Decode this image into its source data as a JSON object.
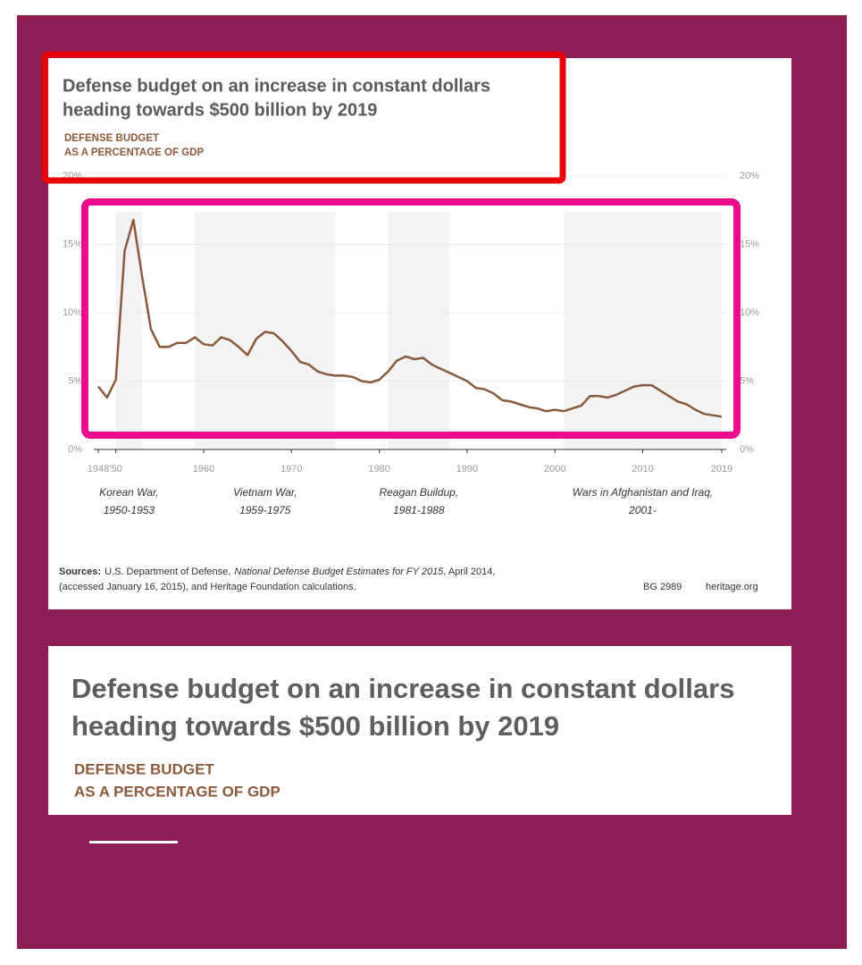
{
  "chart_data": {
    "type": "line",
    "title": [
      "Defense budget on an increase in constant dollars",
      "heading towards $500 billion by 2019"
    ],
    "subtitle": [
      "DEFENSE BUDGET",
      "AS A PERCENTAGE OF GDP"
    ],
    "color": "#8b5a3c",
    "grid": true,
    "x": [
      1948,
      1949,
      1950,
      1951,
      1952,
      1953,
      1954,
      1955,
      1956,
      1957,
      1958,
      1959,
      1960,
      1961,
      1962,
      1963,
      1964,
      1965,
      1966,
      1967,
      1968,
      1969,
      1970,
      1971,
      1972,
      1973,
      1974,
      1975,
      1976,
      1977,
      1978,
      1979,
      1980,
      1981,
      1982,
      1983,
      1984,
      1985,
      1986,
      1987,
      1988,
      1989,
      1990,
      1991,
      1992,
      1993,
      1994,
      1995,
      1996,
      1997,
      1998,
      1999,
      2000,
      2001,
      2002,
      2003,
      2004,
      2005,
      2006,
      2007,
      2008,
      2009,
      2010,
      2011,
      2012,
      2013,
      2014,
      2015,
      2016,
      2017,
      2018,
      2019
    ],
    "values": [
      4.6,
      3.8,
      5.1,
      14.5,
      16.8,
      12.6,
      8.8,
      7.5,
      7.5,
      7.8,
      7.8,
      8.2,
      7.7,
      7.6,
      8.2,
      8.0,
      7.5,
      6.9,
      8.1,
      8.6,
      8.5,
      7.9,
      7.2,
      6.4,
      6.2,
      5.7,
      5.5,
      5.4,
      5.4,
      5.3,
      5.0,
      4.9,
      5.1,
      5.7,
      6.5,
      6.8,
      6.6,
      6.7,
      6.2,
      5.9,
      5.6,
      5.3,
      5.0,
      4.5,
      4.4,
      4.1,
      3.6,
      3.5,
      3.3,
      3.1,
      3.0,
      2.8,
      2.9,
      2.8,
      3.0,
      3.2,
      3.9,
      3.9,
      3.8,
      4.0,
      4.3,
      4.6,
      4.7,
      4.7,
      4.3,
      3.9,
      3.5,
      3.3,
      2.9,
      2.6,
      2.5,
      2.4
    ],
    "xlim": [
      1948,
      2019
    ],
    "xticks": [
      1948,
      {
        "value": 1950,
        "label": "'50"
      },
      1960,
      1970,
      1980,
      1990,
      2000,
      2010,
      2019
    ],
    "ylim": [
      0,
      20
    ],
    "yticks": [
      {
        "value": 0,
        "label": "0%"
      },
      {
        "value": 5,
        "label": "5%"
      },
      {
        "value": 10,
        "label": "10%"
      },
      {
        "value": 15,
        "label": "15%"
      },
      {
        "value": 20,
        "label": "20%"
      }
    ],
    "annotations": [
      {
        "lines": [
          "Korean War,",
          "1950-1953"
        ],
        "span": [
          1950,
          1953
        ]
      },
      {
        "lines": [
          "Vietnam War,",
          "1959-1975"
        ],
        "span": [
          1959,
          1975
        ]
      },
      {
        "lines": [
          "Reagan Buildup,",
          "1981-1988"
        ],
        "span": [
          1981,
          1988
        ]
      },
      {
        "lines": [
          "Wars in Afghanistan and Iraq,",
          "2001-"
        ],
        "span": [
          2001
        ]
      }
    ]
  },
  "footer": {
    "label": "Sources:",
    "line1": [
      "U.S. Department of Defense,",
      "National Defense Budget Estimates for FY 2015",
      ", April 2014,"
    ],
    "line2": "(accessed January 16, 2015), and Heritage Foundation calculations.",
    "credit": "BG 2989",
    "site": "heritage.org"
  },
  "zoom_panel": {
    "title": [
      "Defense budget on an increase in constant dollars",
      "heading towards $500 billion by 2019"
    ],
    "subtitle": [
      "DEFENSE BUDGET",
      "AS A PERCENTAGE OF GDP"
    ]
  }
}
